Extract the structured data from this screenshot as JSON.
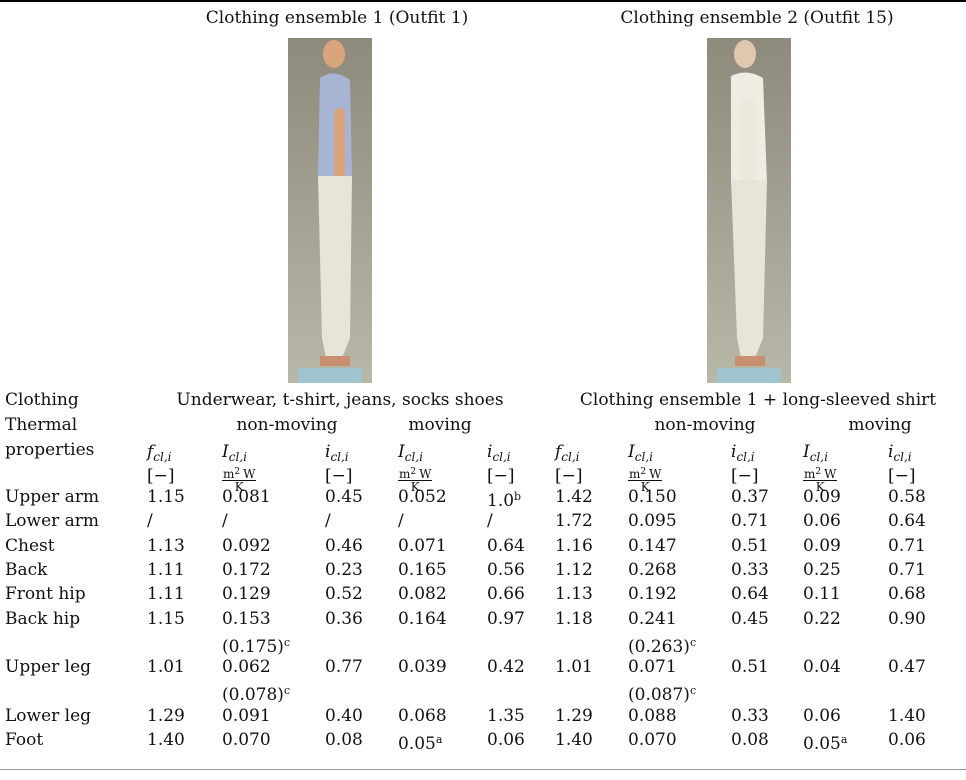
{
  "header": {
    "ensemble_1": "Clothing ensemble 1 (Outfit 1)",
    "ensemble_2": "Clothing ensemble 2 (Outfit 15)"
  },
  "table": {
    "row_labels": {
      "clothing": "Clothing",
      "thermal": "Thermal",
      "properties": "properties"
    },
    "descriptions": [
      "Underwear, t-shirt, jeans, socks shoes",
      "Clothing ensemble 1 + long-sleeved shirt"
    ],
    "conditions": [
      "non-moving",
      "moving",
      "non-moving",
      "moving"
    ],
    "symbols": [
      {
        "symbol": "f",
        "subscript": "cl,i"
      },
      {
        "symbol": "I",
        "subscript": "cl,i"
      },
      {
        "symbol": "i",
        "subscript": "cl,i"
      },
      {
        "symbol": "I",
        "subscript": "cl,i"
      },
      {
        "symbol": "i",
        "subscript": "cl,i"
      },
      {
        "symbol": "f",
        "subscript": "cl,i"
      },
      {
        "symbol": "I",
        "subscript": "cl,i"
      },
      {
        "symbol": "i",
        "subscript": "cl,i"
      },
      {
        "symbol": "I",
        "subscript": "cl,i"
      },
      {
        "symbol": "i",
        "subscript": "cl,i"
      }
    ],
    "units": [
      "[−]",
      {
        "num_base": "m",
        "num_exp": "2",
        "num_rest": "W",
        "den": "K"
      },
      "[−]",
      {
        "num_base": "m",
        "num_exp": "2",
        "num_rest": "W",
        "den": "K"
      },
      "[−]",
      "[−]",
      {
        "num_base": "m",
        "num_exp": "2",
        "num_rest": "W",
        "den": "K"
      },
      "[−]",
      {
        "num_base": "m",
        "num_exp": "2",
        "num_rest": "W",
        "den": "K"
      },
      "[−]"
    ],
    "rows": [
      {
        "label": "Upper arm",
        "cells": [
          "1.15",
          "0.081",
          "0.45",
          "0.052",
          {
            "text": "1.0",
            "sup": "b"
          },
          "1.42",
          "0.150",
          "0.37",
          "0.09",
          "0.58"
        ]
      },
      {
        "label": "Lower arm",
        "cells": [
          "/",
          "/",
          "/",
          "/",
          "/",
          "1.72",
          "0.095",
          "0.71",
          "0.06",
          "0.64"
        ]
      },
      {
        "label": "Chest",
        "cells": [
          "1.13",
          "0.092",
          "0.46",
          "0.071",
          "0.64",
          "1.16",
          "0.147",
          "0.51",
          "0.09",
          "0.71"
        ]
      },
      {
        "label": "Back",
        "cells": [
          "1.11",
          "0.172",
          "0.23",
          "0.165",
          "0.56",
          "1.12",
          "0.268",
          "0.33",
          "0.25",
          "0.71"
        ]
      },
      {
        "label": "Front hip",
        "cells": [
          "1.11",
          "0.129",
          "0.52",
          "0.082",
          "0.66",
          "1.13",
          "0.192",
          "0.64",
          "0.11",
          "0.68"
        ]
      },
      {
        "label": "Back hip",
        "cells": [
          "1.15",
          "0.153",
          "0.36",
          "0.164",
          "0.97",
          "1.18",
          "0.241",
          "0.45",
          "0.22",
          "0.90"
        ],
        "continuation": {
          "ensemble_1": {
            "text": "(0.175)",
            "sup": "c"
          },
          "ensemble_2": {
            "text": "(0.263)",
            "sup": "c"
          }
        }
      },
      {
        "label": "Upper leg",
        "cells": [
          "1.01",
          "0.062",
          "0.77",
          "0.039",
          "0.42",
          "1.01",
          "0.071",
          "0.51",
          "0.04",
          "0.47"
        ],
        "continuation": {
          "ensemble_1": {
            "text": "(0.078)",
            "sup": "c"
          },
          "ensemble_2": {
            "text": "(0.087)",
            "sup": "c"
          }
        }
      },
      {
        "label": "Lower leg",
        "cells": [
          "1.29",
          "0.091",
          "0.40",
          "0.068",
          "1.35",
          "1.29",
          "0.088",
          "0.33",
          "0.06",
          "1.40"
        ]
      },
      {
        "label": "Foot",
        "cells": [
          "1.40",
          "0.070",
          "0.08",
          {
            "text": "0.05",
            "sup": "a"
          },
          "0.06",
          "1.40",
          "0.070",
          "0.08",
          {
            "text": "0.05",
            "sup": "a"
          },
          "0.06"
        ]
      }
    ]
  }
}
